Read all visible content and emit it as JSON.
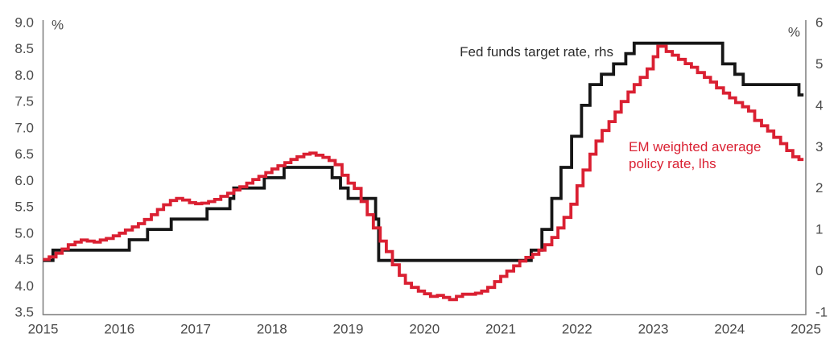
{
  "chart_data": {
    "type": "line",
    "title": "",
    "grid": false,
    "background": "#ffffff",
    "axis_color": "#7b7b7b",
    "tick_text_color": "#4a4a4a",
    "left_axis": {
      "label": "%",
      "min": 3.5,
      "max": 9.0,
      "ticks": [
        "9.0",
        "8.5",
        "8.0",
        "7.5",
        "7.0",
        "6.5",
        "6.0",
        "5.5",
        "5.0",
        "4.5",
        "4.0",
        "3.5"
      ]
    },
    "right_axis": {
      "label": "%",
      "min": -1,
      "max": 6,
      "ticks": [
        "6",
        "5",
        "4",
        "3",
        "2",
        "1",
        "0",
        "-1"
      ]
    },
    "x_axis": {
      "min": 2015,
      "max": 2025,
      "ticks": [
        "2015",
        "2016",
        "2017",
        "2018",
        "2019",
        "2020",
        "2021",
        "2022",
        "2023",
        "2024",
        "2025"
      ]
    },
    "legend": {
      "fed": "Fed funds target rate, rhs",
      "em_line1": "EM weighted average",
      "em_line2": "policy rate, lhs"
    },
    "series": [
      {
        "name": "Fed funds target rate, rhs",
        "axis": "right",
        "color": "#161616",
        "style": "step",
        "end_t": 2024.97,
        "points": [
          [
            2015.0,
            0.25
          ],
          [
            2015.13,
            0.5
          ],
          [
            2016.13,
            0.75
          ],
          [
            2016.37,
            1.0
          ],
          [
            2016.68,
            1.25
          ],
          [
            2017.15,
            1.5
          ],
          [
            2017.45,
            1.75
          ],
          [
            2017.5,
            2.0
          ],
          [
            2017.9,
            2.25
          ],
          [
            2018.16,
            2.5
          ],
          [
            2018.79,
            2.25
          ],
          [
            2018.9,
            2.0
          ],
          [
            2019.0,
            1.75
          ],
          [
            2019.36,
            1.25
          ],
          [
            2019.4,
            0.25
          ],
          [
            2021.4,
            0.5
          ],
          [
            2021.54,
            1.0
          ],
          [
            2021.67,
            1.75
          ],
          [
            2021.79,
            2.5
          ],
          [
            2021.93,
            3.25
          ],
          [
            2022.06,
            4.0
          ],
          [
            2022.17,
            4.5
          ],
          [
            2022.32,
            4.75
          ],
          [
            2022.48,
            5.0
          ],
          [
            2022.64,
            5.25
          ],
          [
            2022.75,
            5.5
          ],
          [
            2023.91,
            5.0
          ],
          [
            2024.07,
            4.75
          ],
          [
            2024.18,
            4.5
          ],
          [
            2024.91,
            4.25
          ]
        ]
      },
      {
        "name": "EM weighted average policy rate, lhs",
        "axis": "left",
        "color": "#da2032",
        "style": "step",
        "end_t": 2024.97,
        "points": [
          [
            2015.0,
            4.5
          ],
          [
            2015.08,
            4.55
          ],
          [
            2015.17,
            4.62
          ],
          [
            2015.25,
            4.7
          ],
          [
            2015.33,
            4.78
          ],
          [
            2015.42,
            4.83
          ],
          [
            2015.5,
            4.87
          ],
          [
            2015.58,
            4.85
          ],
          [
            2015.67,
            4.83
          ],
          [
            2015.75,
            4.87
          ],
          [
            2015.83,
            4.9
          ],
          [
            2015.92,
            4.95
          ],
          [
            2016.0,
            5.0
          ],
          [
            2016.08,
            5.06
          ],
          [
            2016.17,
            5.12
          ],
          [
            2016.25,
            5.18
          ],
          [
            2016.33,
            5.26
          ],
          [
            2016.42,
            5.35
          ],
          [
            2016.5,
            5.45
          ],
          [
            2016.58,
            5.54
          ],
          [
            2016.67,
            5.62
          ],
          [
            2016.75,
            5.66
          ],
          [
            2016.83,
            5.63
          ],
          [
            2016.92,
            5.58
          ],
          [
            2017.0,
            5.56
          ],
          [
            2017.08,
            5.57
          ],
          [
            2017.17,
            5.6
          ],
          [
            2017.25,
            5.64
          ],
          [
            2017.33,
            5.7
          ],
          [
            2017.42,
            5.76
          ],
          [
            2017.5,
            5.82
          ],
          [
            2017.58,
            5.88
          ],
          [
            2017.67,
            5.95
          ],
          [
            2017.75,
            6.02
          ],
          [
            2017.83,
            6.08
          ],
          [
            2017.92,
            6.15
          ],
          [
            2018.0,
            6.22
          ],
          [
            2018.08,
            6.28
          ],
          [
            2018.17,
            6.34
          ],
          [
            2018.25,
            6.4
          ],
          [
            2018.33,
            6.45
          ],
          [
            2018.42,
            6.5
          ],
          [
            2018.5,
            6.52
          ],
          [
            2018.58,
            6.48
          ],
          [
            2018.67,
            6.44
          ],
          [
            2018.75,
            6.38
          ],
          [
            2018.83,
            6.3
          ],
          [
            2018.92,
            6.1
          ],
          [
            2019.0,
            5.95
          ],
          [
            2019.08,
            5.85
          ],
          [
            2019.17,
            5.6
          ],
          [
            2019.25,
            5.35
          ],
          [
            2019.33,
            5.1
          ],
          [
            2019.42,
            4.85
          ],
          [
            2019.5,
            4.65
          ],
          [
            2019.58,
            4.4
          ],
          [
            2019.67,
            4.2
          ],
          [
            2019.75,
            4.05
          ],
          [
            2019.83,
            3.97
          ],
          [
            2019.92,
            3.9
          ],
          [
            2020.0,
            3.85
          ],
          [
            2020.08,
            3.8
          ],
          [
            2020.17,
            3.82
          ],
          [
            2020.25,
            3.78
          ],
          [
            2020.33,
            3.74
          ],
          [
            2020.42,
            3.8
          ],
          [
            2020.5,
            3.84
          ],
          [
            2020.58,
            3.84
          ],
          [
            2020.67,
            3.86
          ],
          [
            2020.75,
            3.9
          ],
          [
            2020.83,
            3.97
          ],
          [
            2020.92,
            4.08
          ],
          [
            2021.0,
            4.18
          ],
          [
            2021.08,
            4.28
          ],
          [
            2021.17,
            4.38
          ],
          [
            2021.25,
            4.47
          ],
          [
            2021.33,
            4.54
          ],
          [
            2021.42,
            4.6
          ],
          [
            2021.5,
            4.68
          ],
          [
            2021.58,
            4.78
          ],
          [
            2021.67,
            4.92
          ],
          [
            2021.75,
            5.1
          ],
          [
            2021.83,
            5.3
          ],
          [
            2021.92,
            5.55
          ],
          [
            2022.0,
            5.9
          ],
          [
            2022.08,
            6.2
          ],
          [
            2022.17,
            6.5
          ],
          [
            2022.25,
            6.75
          ],
          [
            2022.33,
            6.95
          ],
          [
            2022.42,
            7.12
          ],
          [
            2022.5,
            7.3
          ],
          [
            2022.58,
            7.5
          ],
          [
            2022.67,
            7.68
          ],
          [
            2022.75,
            7.82
          ],
          [
            2022.83,
            7.96
          ],
          [
            2022.92,
            8.12
          ],
          [
            2023.0,
            8.35
          ],
          [
            2023.06,
            8.55
          ],
          [
            2023.17,
            8.45
          ],
          [
            2023.25,
            8.38
          ],
          [
            2023.33,
            8.3
          ],
          [
            2023.42,
            8.22
          ],
          [
            2023.5,
            8.15
          ],
          [
            2023.58,
            8.05
          ],
          [
            2023.67,
            7.96
          ],
          [
            2023.75,
            7.87
          ],
          [
            2023.83,
            7.76
          ],
          [
            2023.92,
            7.66
          ],
          [
            2024.0,
            7.57
          ],
          [
            2024.08,
            7.48
          ],
          [
            2024.17,
            7.4
          ],
          [
            2024.25,
            7.32
          ],
          [
            2024.33,
            7.14
          ],
          [
            2024.42,
            7.04
          ],
          [
            2024.5,
            6.94
          ],
          [
            2024.58,
            6.82
          ],
          [
            2024.67,
            6.7
          ],
          [
            2024.75,
            6.57
          ],
          [
            2024.83,
            6.45
          ],
          [
            2024.91,
            6.4
          ]
        ]
      }
    ]
  }
}
